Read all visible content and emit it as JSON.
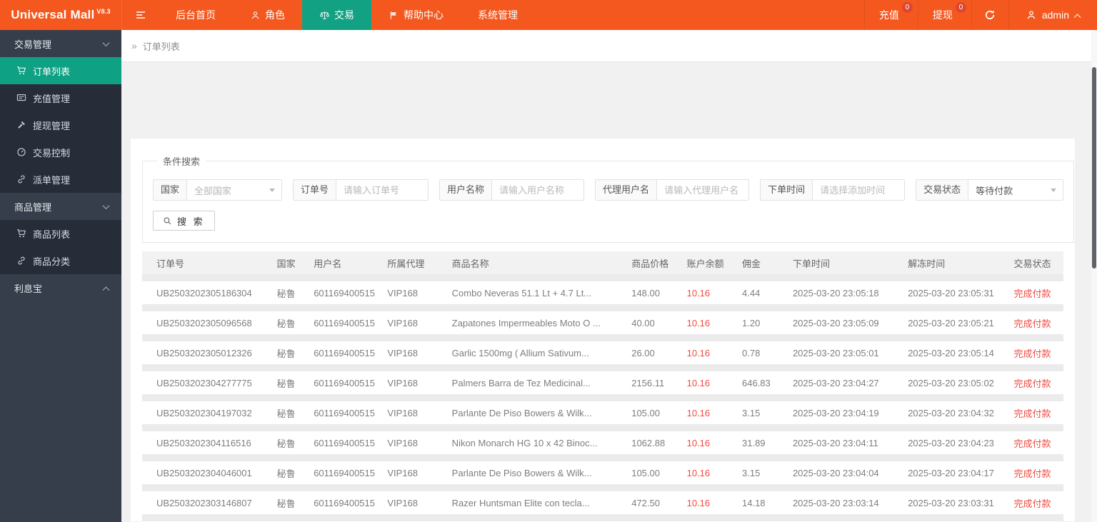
{
  "colors": {
    "brand": "#f4581f",
    "accent": "#12a182",
    "danger": "#f2483f",
    "sidebar_bg": "#363e4b",
    "sidebar_item_bg": "#262d38"
  },
  "header": {
    "logo": "Universal Mall",
    "version": "V8.3",
    "nav": [
      {
        "label": "后台首页",
        "active": false
      },
      {
        "label": "角色",
        "icon": "user",
        "active": false
      },
      {
        "label": "交易",
        "icon": "scales",
        "active": true
      },
      {
        "label": "帮助中心",
        "icon": "flag",
        "active": false
      },
      {
        "label": "系统管理",
        "active": false
      }
    ],
    "actions": [
      {
        "label": "充值",
        "badge": "0"
      },
      {
        "label": "提现",
        "badge": "0"
      }
    ],
    "user": "admin"
  },
  "sidebar": {
    "items": [
      {
        "isGroup": true,
        "label": "交易管理",
        "chevUp": false
      },
      {
        "isItem": true,
        "label": "订单列表",
        "icon": "cart",
        "active": true
      },
      {
        "isItem": true,
        "label": "充值管理",
        "icon": "card",
        "active": false
      },
      {
        "isItem": true,
        "label": "提现管理",
        "icon": "hammer",
        "active": false
      },
      {
        "isItem": true,
        "label": "交易控制",
        "icon": "gauge",
        "active": false
      },
      {
        "isItem": true,
        "label": "派单管理",
        "icon": "link",
        "active": false
      },
      {
        "isGroup": true,
        "label": "商品管理",
        "chevUp": false
      },
      {
        "isItem": true,
        "label": "商品列表",
        "icon": "cart",
        "active": false
      },
      {
        "isItem": true,
        "label": "商品分类",
        "icon": "link",
        "active": false
      },
      {
        "isGroup": true,
        "label": "利息宝",
        "chevUp": true
      }
    ]
  },
  "breadcrumb": {
    "arrows": "»",
    "label": "订单列表"
  },
  "search": {
    "legend": "条件搜索",
    "filters": [
      {
        "label": "国家",
        "select": true,
        "value": "全部国家",
        "muted": true
      },
      {
        "label": "订单号",
        "input": true,
        "placeholder": "请输入订单号"
      },
      {
        "label": "用户名称",
        "input": true,
        "placeholder": "请输入用户名称"
      },
      {
        "label": "代理用户名",
        "input": true,
        "placeholder": "请输入代理用户名"
      },
      {
        "label": "下单时间",
        "input": true,
        "placeholder": "请选择添加时间"
      },
      {
        "label": "交易状态",
        "select": true,
        "value": "等待付款",
        "muted": false
      }
    ],
    "button": "搜 索"
  },
  "table": {
    "columns": [
      "订单号",
      "国家",
      "用户名",
      "所属代理",
      "商品名称",
      "商品价格",
      "账户余额",
      "佣金",
      "下单时间",
      "解冻时间",
      "交易状态"
    ],
    "rows": [
      [
        "UB2503202305186304",
        "秘鲁",
        "601169400515",
        "VIP168",
        "Combo Neveras 51.1 Lt + 4.7 Lt...",
        "148.00",
        "10.16",
        "4.44",
        "2025-03-20 23:05:18",
        "2025-03-20 23:05:31",
        "完成付款"
      ],
      [
        "UB2503202305096568",
        "秘鲁",
        "601169400515",
        "VIP168",
        "Zapatones Impermeables Moto O ...",
        "40.00",
        "10.16",
        "1.20",
        "2025-03-20 23:05:09",
        "2025-03-20 23:05:21",
        "完成付款"
      ],
      [
        "UB2503202305012326",
        "秘鲁",
        "601169400515",
        "VIP168",
        "Garlic 1500mg ( Allium Sativum...",
        "26.00",
        "10.16",
        "0.78",
        "2025-03-20 23:05:01",
        "2025-03-20 23:05:14",
        "完成付款"
      ],
      [
        "UB2503202304277775",
        "秘鲁",
        "601169400515",
        "VIP168",
        "Palmers Barra de Tez Medicinal...",
        "2156.11",
        "10.16",
        "646.83",
        "2025-03-20 23:04:27",
        "2025-03-20 23:05:02",
        "完成付款"
      ],
      [
        "UB2503202304197032",
        "秘鲁",
        "601169400515",
        "VIP168",
        "Parlante De Piso Bowers & Wilk...",
        "105.00",
        "10.16",
        "3.15",
        "2025-03-20 23:04:19",
        "2025-03-20 23:04:32",
        "完成付款"
      ],
      [
        "UB2503202304116516",
        "秘鲁",
        "601169400515",
        "VIP168",
        "Nikon Monarch HG 10 x 42 Binoc...",
        "1062.88",
        "10.16",
        "31.89",
        "2025-03-20 23:04:11",
        "2025-03-20 23:04:23",
        "完成付款"
      ],
      [
        "UB2503202304046001",
        "秘鲁",
        "601169400515",
        "VIP168",
        "Parlante De Piso Bowers & Wilk...",
        "105.00",
        "10.16",
        "3.15",
        "2025-03-20 23:04:04",
        "2025-03-20 23:04:17",
        "完成付款"
      ],
      [
        "UB2503202303146807",
        "秘鲁",
        "601169400515",
        "VIP168",
        "Razer Huntsman Elite con tecla...",
        "472.50",
        "10.16",
        "14.18",
        "2025-03-20 23:03:14",
        "2025-03-20 23:03:31",
        "完成付款"
      ]
    ]
  }
}
